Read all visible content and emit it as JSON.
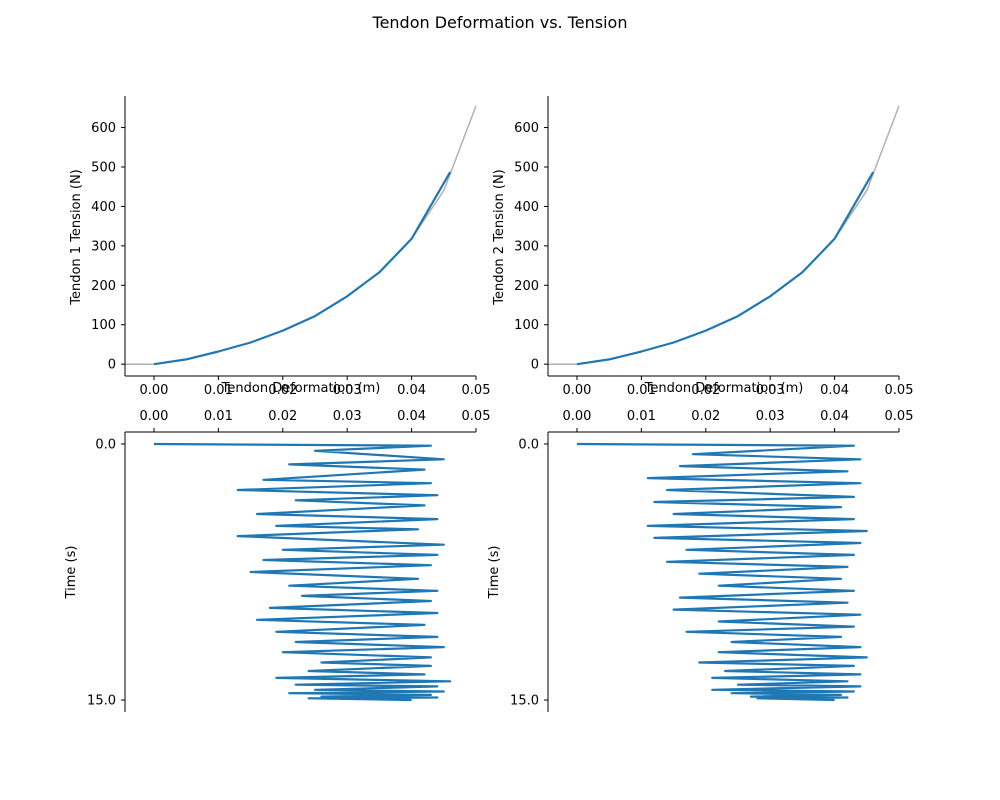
{
  "title": "Tendon Deformation vs. Tension",
  "colors": {
    "series": "#1f77b4",
    "model_curve": "#b0b0b0",
    "axis": "#000000"
  },
  "chart_data": [
    {
      "panel": "tendon-1-tension",
      "type": "line",
      "xlabel": "Tendon Deformation (m)",
      "ylabel": "Tendon 1 Tension (N)",
      "xlim": [
        -0.0045,
        0.05
      ],
      "ylim": [
        -30,
        680
      ],
      "xticks": [
        "0.00",
        "0.01",
        "0.02",
        "0.03",
        "0.04",
        "0.05"
      ],
      "yticks": [
        "0",
        "100",
        "200",
        "300",
        "400",
        "500",
        "600"
      ],
      "xtick_values": [
        0,
        0.01,
        0.02,
        0.03,
        0.04,
        0.05
      ],
      "ytick_values": [
        0,
        100,
        200,
        300,
        400,
        500,
        600
      ],
      "series": [
        {
          "role": "model",
          "color": "#b0b0b0",
          "x": [
            -0.0045,
            0.0,
            0.005,
            0.01,
            0.015,
            0.02,
            0.025,
            0.03,
            0.035,
            0.04,
            0.045,
            0.05
          ],
          "y": [
            0,
            0,
            12,
            32,
            55,
            85,
            122,
            172,
            233,
            318,
            440,
            655
          ]
        },
        {
          "role": "measured",
          "color": "#1f77b4",
          "x": [
            0.0,
            0.005,
            0.01,
            0.015,
            0.02,
            0.025,
            0.03,
            0.035,
            0.04,
            0.046
          ],
          "y": [
            0,
            12,
            32,
            55,
            85,
            122,
            172,
            233,
            318,
            487
          ]
        }
      ]
    },
    {
      "panel": "tendon-2-tension",
      "type": "line",
      "xlabel": "Tendon Deformation (m)",
      "ylabel": "Tendon 2 Tension (N)",
      "xlim": [
        -0.0045,
        0.05
      ],
      "ylim": [
        -30,
        680
      ],
      "xticks": [
        "0.00",
        "0.01",
        "0.02",
        "0.03",
        "0.04",
        "0.05"
      ],
      "yticks": [
        "0",
        "100",
        "200",
        "300",
        "400",
        "500",
        "600"
      ],
      "xtick_values": [
        0,
        0.01,
        0.02,
        0.03,
        0.04,
        0.05
      ],
      "ytick_values": [
        0,
        100,
        200,
        300,
        400,
        500,
        600
      ],
      "series": [
        {
          "role": "model",
          "color": "#b0b0b0",
          "x": [
            -0.0045,
            0.0,
            0.005,
            0.01,
            0.015,
            0.02,
            0.025,
            0.03,
            0.035,
            0.04,
            0.045,
            0.05
          ],
          "y": [
            0,
            0,
            12,
            32,
            55,
            85,
            122,
            172,
            233,
            318,
            440,
            655
          ]
        },
        {
          "role": "measured",
          "color": "#1f77b4",
          "x": [
            0.0,
            0.005,
            0.01,
            0.015,
            0.02,
            0.025,
            0.03,
            0.035,
            0.04,
            0.046
          ],
          "y": [
            0,
            12,
            32,
            55,
            85,
            122,
            172,
            233,
            318,
            487
          ]
        }
      ]
    },
    {
      "panel": "tendon-1-time",
      "type": "line",
      "xlabel": "",
      "ylabel": "Time (s)",
      "xlim": [
        -0.0045,
        0.05
      ],
      "ylim": [
        15.7,
        -0.7
      ],
      "xticks": [
        "0.00",
        "0.01",
        "0.02",
        "0.03",
        "0.04",
        "0.05"
      ],
      "yticks": [
        "0.0",
        "15.0"
      ],
      "xtick_values": [
        0,
        0.01,
        0.02,
        0.03,
        0.04,
        0.05
      ],
      "ytick_values": [
        0,
        15
      ],
      "series": [
        {
          "role": "measured",
          "color": "#1f77b4",
          "x": [
            0.0,
            0.043,
            0.025,
            0.045,
            0.021,
            0.042,
            0.017,
            0.043,
            0.013,
            0.044,
            0.022,
            0.042,
            0.016,
            0.044,
            0.019,
            0.041,
            0.013,
            0.045,
            0.02,
            0.044,
            0.017,
            0.043,
            0.015,
            0.041,
            0.021,
            0.044,
            0.023,
            0.043,
            0.018,
            0.044,
            0.016,
            0.042,
            0.019,
            0.044,
            0.022,
            0.045,
            0.02,
            0.043,
            0.026,
            0.043,
            0.024,
            0.042,
            0.019,
            0.046,
            0.022,
            0.044,
            0.025,
            0.045,
            0.021,
            0.043,
            0.026,
            0.044,
            0.024,
            0.04
          ],
          "y": [
            0.0,
            0.1,
            0.4,
            0.9,
            1.2,
            1.5,
            2.1,
            2.3,
            2.7,
            3.0,
            3.3,
            3.6,
            4.1,
            4.4,
            4.8,
            5.0,
            5.4,
            5.9,
            6.2,
            6.5,
            6.8,
            7.1,
            7.5,
            7.9,
            8.3,
            8.6,
            8.9,
            9.2,
            9.6,
            9.9,
            10.3,
            10.6,
            11.0,
            11.3,
            11.6,
            11.9,
            12.2,
            12.5,
            12.8,
            13.0,
            13.3,
            13.5,
            13.7,
            13.9,
            14.1,
            14.2,
            14.4,
            14.5,
            14.6,
            14.7,
            14.8,
            14.85,
            14.9,
            15.0
          ]
        }
      ]
    },
    {
      "panel": "tendon-2-time",
      "type": "line",
      "xlabel": "",
      "ylabel": "Time (s)",
      "xlim": [
        -0.0045,
        0.05
      ],
      "ylim": [
        15.7,
        -0.7
      ],
      "xticks": [
        "0.00",
        "0.01",
        "0.02",
        "0.03",
        "0.04",
        "0.05"
      ],
      "yticks": [
        "0.0",
        "15.0"
      ],
      "xtick_values": [
        0,
        0.01,
        0.02,
        0.03,
        0.04,
        0.05
      ],
      "ytick_values": [
        0,
        15
      ],
      "series": [
        {
          "role": "measured",
          "color": "#1f77b4",
          "x": [
            0.0,
            0.043,
            0.018,
            0.044,
            0.016,
            0.042,
            0.011,
            0.044,
            0.014,
            0.043,
            0.012,
            0.041,
            0.015,
            0.043,
            0.011,
            0.045,
            0.012,
            0.044,
            0.017,
            0.043,
            0.014,
            0.042,
            0.019,
            0.041,
            0.022,
            0.043,
            0.016,
            0.042,
            0.015,
            0.044,
            0.022,
            0.043,
            0.017,
            0.041,
            0.024,
            0.044,
            0.022,
            0.045,
            0.019,
            0.043,
            0.023,
            0.044,
            0.021,
            0.042,
            0.025,
            0.044,
            0.021,
            0.043,
            0.024,
            0.041,
            0.027,
            0.042,
            0.028,
            0.04
          ],
          "y": [
            0.0,
            0.1,
            0.6,
            0.9,
            1.3,
            1.6,
            2.0,
            2.3,
            2.7,
            3.1,
            3.4,
            3.7,
            4.1,
            4.4,
            4.8,
            5.1,
            5.5,
            5.8,
            6.2,
            6.5,
            6.9,
            7.2,
            7.6,
            7.9,
            8.3,
            8.6,
            9.0,
            9.3,
            9.7,
            10.0,
            10.4,
            10.7,
            11.0,
            11.3,
            11.6,
            11.9,
            12.2,
            12.5,
            12.8,
            13.0,
            13.3,
            13.5,
            13.7,
            13.9,
            14.1,
            14.2,
            14.4,
            14.5,
            14.6,
            14.7,
            14.8,
            14.85,
            14.9,
            15.0
          ]
        }
      ]
    }
  ]
}
